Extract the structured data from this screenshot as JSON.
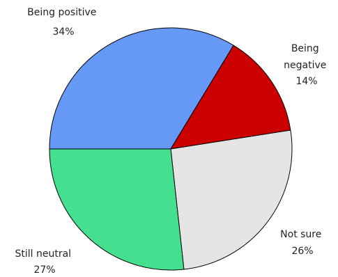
{
  "chart_data": {
    "type": "pie",
    "title": "",
    "start_angle_deg": 180,
    "direction": "clockwise",
    "slices": [
      {
        "label_lines": [
          "Being positive"
        ],
        "pct_label": "34%",
        "value": 34,
        "color": "#6699f5"
      },
      {
        "label_lines": [
          "Being",
          "negative"
        ],
        "pct_label": "14%",
        "value": 14,
        "color": "#cc0000"
      },
      {
        "label_lines": [
          "Not sure"
        ],
        "pct_label": "26%",
        "value": 26,
        "color": "#e5e5e5"
      },
      {
        "label_lines": [
          "Still neutral"
        ],
        "pct_label": "27%",
        "value": 27,
        "color": "#44e090"
      }
    ]
  }
}
